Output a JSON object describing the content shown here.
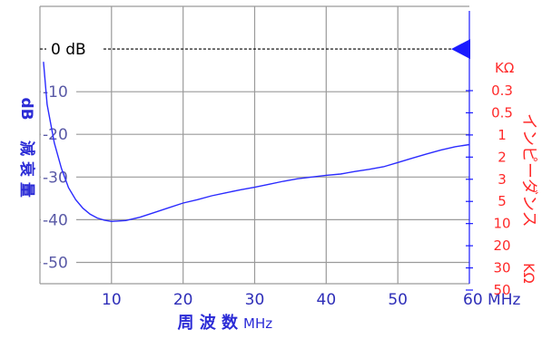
{
  "chart_data": {
    "type": "line",
    "xlabel": "周 波 数",
    "xlabel_unit": "MHz",
    "ylabel": "減 衰 量",
    "ylabel_unit": "dB",
    "xlim": [
      0,
      60
    ],
    "ylim": [
      -55,
      10
    ],
    "x_ticks": [
      10,
      20,
      30,
      40,
      50,
      60
    ],
    "x_tick_labels": [
      "10",
      "20",
      "30",
      "40",
      "50",
      "60 MHz"
    ],
    "y_ticks": [
      -10,
      -20,
      -30,
      -40,
      -50
    ],
    "y_tick_labels": [
      "-10",
      "-20",
      "-30",
      "-40",
      "-50"
    ],
    "reference_line": {
      "y": 0,
      "label": "0 dB"
    },
    "right_axis": {
      "label": "インピーダンス",
      "unit_top": "KΩ",
      "unit_side": "KΩ",
      "tick_labels": [
        "0.3",
        "0.5",
        "1",
        "2",
        "3",
        "5",
        "10",
        "20",
        "30",
        "50"
      ]
    },
    "grid": true,
    "series": [
      {
        "x": [
          0.5,
          1,
          2,
          3,
          4,
          5,
          6,
          7,
          8,
          9,
          10,
          12,
          14,
          16,
          18,
          20,
          22,
          24,
          26,
          28,
          30,
          32,
          34,
          36,
          38,
          40,
          42,
          44,
          46,
          48,
          50,
          52,
          54,
          56,
          58,
          60
        ],
        "y": [
          -3,
          -13,
          -22,
          -28,
          -32.5,
          -35.3,
          -37.3,
          -38.7,
          -39.6,
          -40.1,
          -40.4,
          -40.2,
          -39.4,
          -38.3,
          -37.2,
          -36.1,
          -35.3,
          -34.4,
          -33.7,
          -33.0,
          -32.4,
          -31.7,
          -31.0,
          -30.4,
          -30.0,
          -29.6,
          -29.3,
          -28.7,
          -28.2,
          -27.6,
          -26.6,
          -25.6,
          -24.6,
          -23.7,
          -22.9,
          -22.4
        ]
      }
    ],
    "colors": {
      "series": "#2b2bff",
      "left_axis": "#2b2bd6",
      "right_axis": "#ff2a2a",
      "grid": "#9a9a9a",
      "reference": "#000000"
    }
  }
}
